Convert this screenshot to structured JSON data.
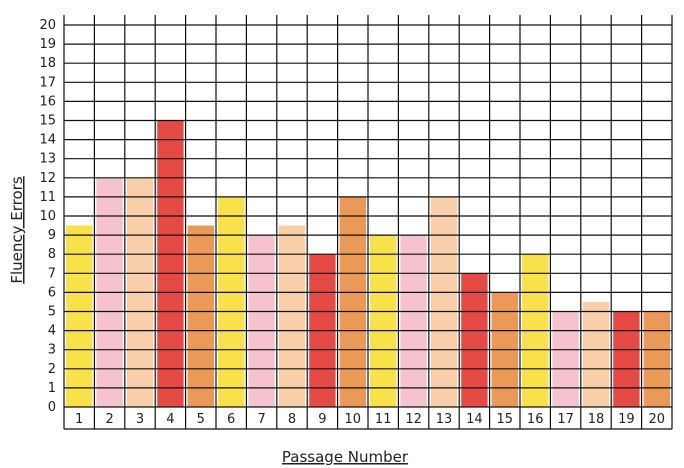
{
  "chart_data": {
    "type": "bar",
    "title": "",
    "xlabel": "Passage Number",
    "ylabel": "Fluency Errors",
    "categories": [
      "1",
      "2",
      "3",
      "4",
      "5",
      "6",
      "7",
      "8",
      "9",
      "10",
      "11",
      "12",
      "13",
      "14",
      "15",
      "16",
      "17",
      "18",
      "19",
      "20"
    ],
    "values": [
      9.5,
      12,
      12,
      15,
      9.5,
      11,
      9,
      9.5,
      8,
      11,
      9,
      9,
      11,
      7,
      6,
      8,
      5,
      5.5,
      5,
      5
    ],
    "ylim": [
      0,
      20
    ],
    "yticks": [
      "0",
      "1",
      "2",
      "3",
      "4",
      "5",
      "6",
      "7",
      "8",
      "9",
      "10",
      "11",
      "12",
      "13",
      "14",
      "15",
      "16",
      "17",
      "18",
      "19",
      "20"
    ],
    "grid": true,
    "bar_colors": [
      "#f7dc2a",
      "#f3b8c4",
      "#f7c79a",
      "#e02a25",
      "#e8873a",
      "#f7dc2a",
      "#f3b8c4",
      "#f7c79a",
      "#e02a25",
      "#e8873a",
      "#f7dc2a",
      "#f3b8c4",
      "#f7c79a",
      "#e02a25",
      "#e8873a",
      "#f7dc2a",
      "#f3b8c4",
      "#f7c79a",
      "#e02a25",
      "#e8873a"
    ]
  }
}
